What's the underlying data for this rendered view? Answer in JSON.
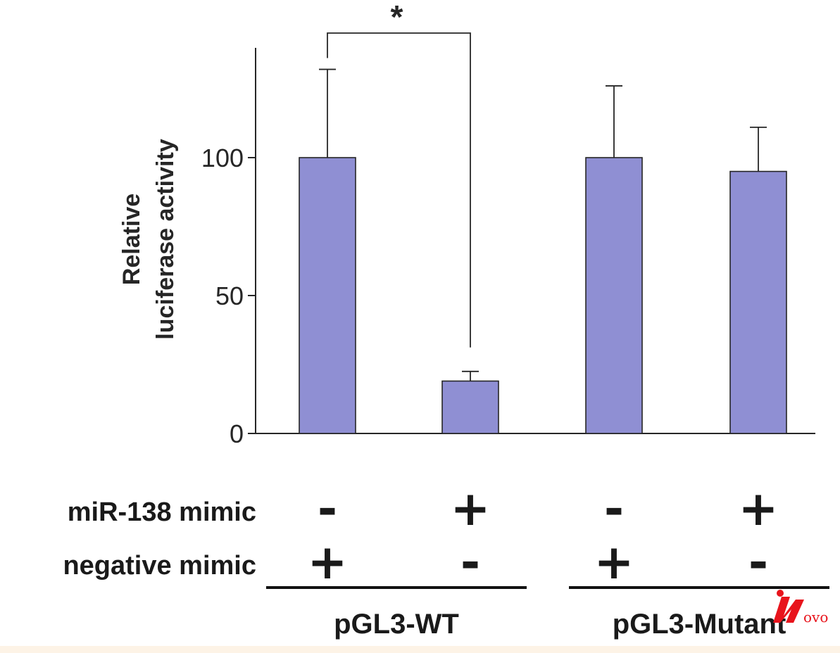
{
  "chart_data": {
    "type": "bar",
    "ylabel_lines": [
      "Relative",
      "luciferase activity"
    ],
    "ylim": [
      0,
      140
    ],
    "yticks": [
      0,
      50,
      100
    ],
    "ytick_labels": [
      "0",
      "50",
      "100"
    ],
    "categories": [
      "1",
      "2",
      "3",
      "4"
    ],
    "values": [
      100,
      19,
      100,
      95
    ],
    "error_upper": [
      32,
      3.5,
      26,
      16
    ],
    "bar_color": "#8f8fd3",
    "significance": {
      "from": "1",
      "to": "2",
      "label": "*"
    },
    "conditions": [
      {
        "label": "miR-138 mimic",
        "values": [
          "-",
          "+",
          "-",
          "+"
        ]
      },
      {
        "label": "negative mimic",
        "values": [
          "+",
          "-",
          "+",
          "-"
        ]
      }
    ],
    "groups": [
      {
        "label": "pGL3-WT",
        "categories": [
          "1",
          "2"
        ]
      },
      {
        "label": "pGL3-Mutant",
        "categories": [
          "3",
          "4"
        ]
      }
    ]
  },
  "watermark": {
    "text": "ovo",
    "color": "#e8141c"
  }
}
